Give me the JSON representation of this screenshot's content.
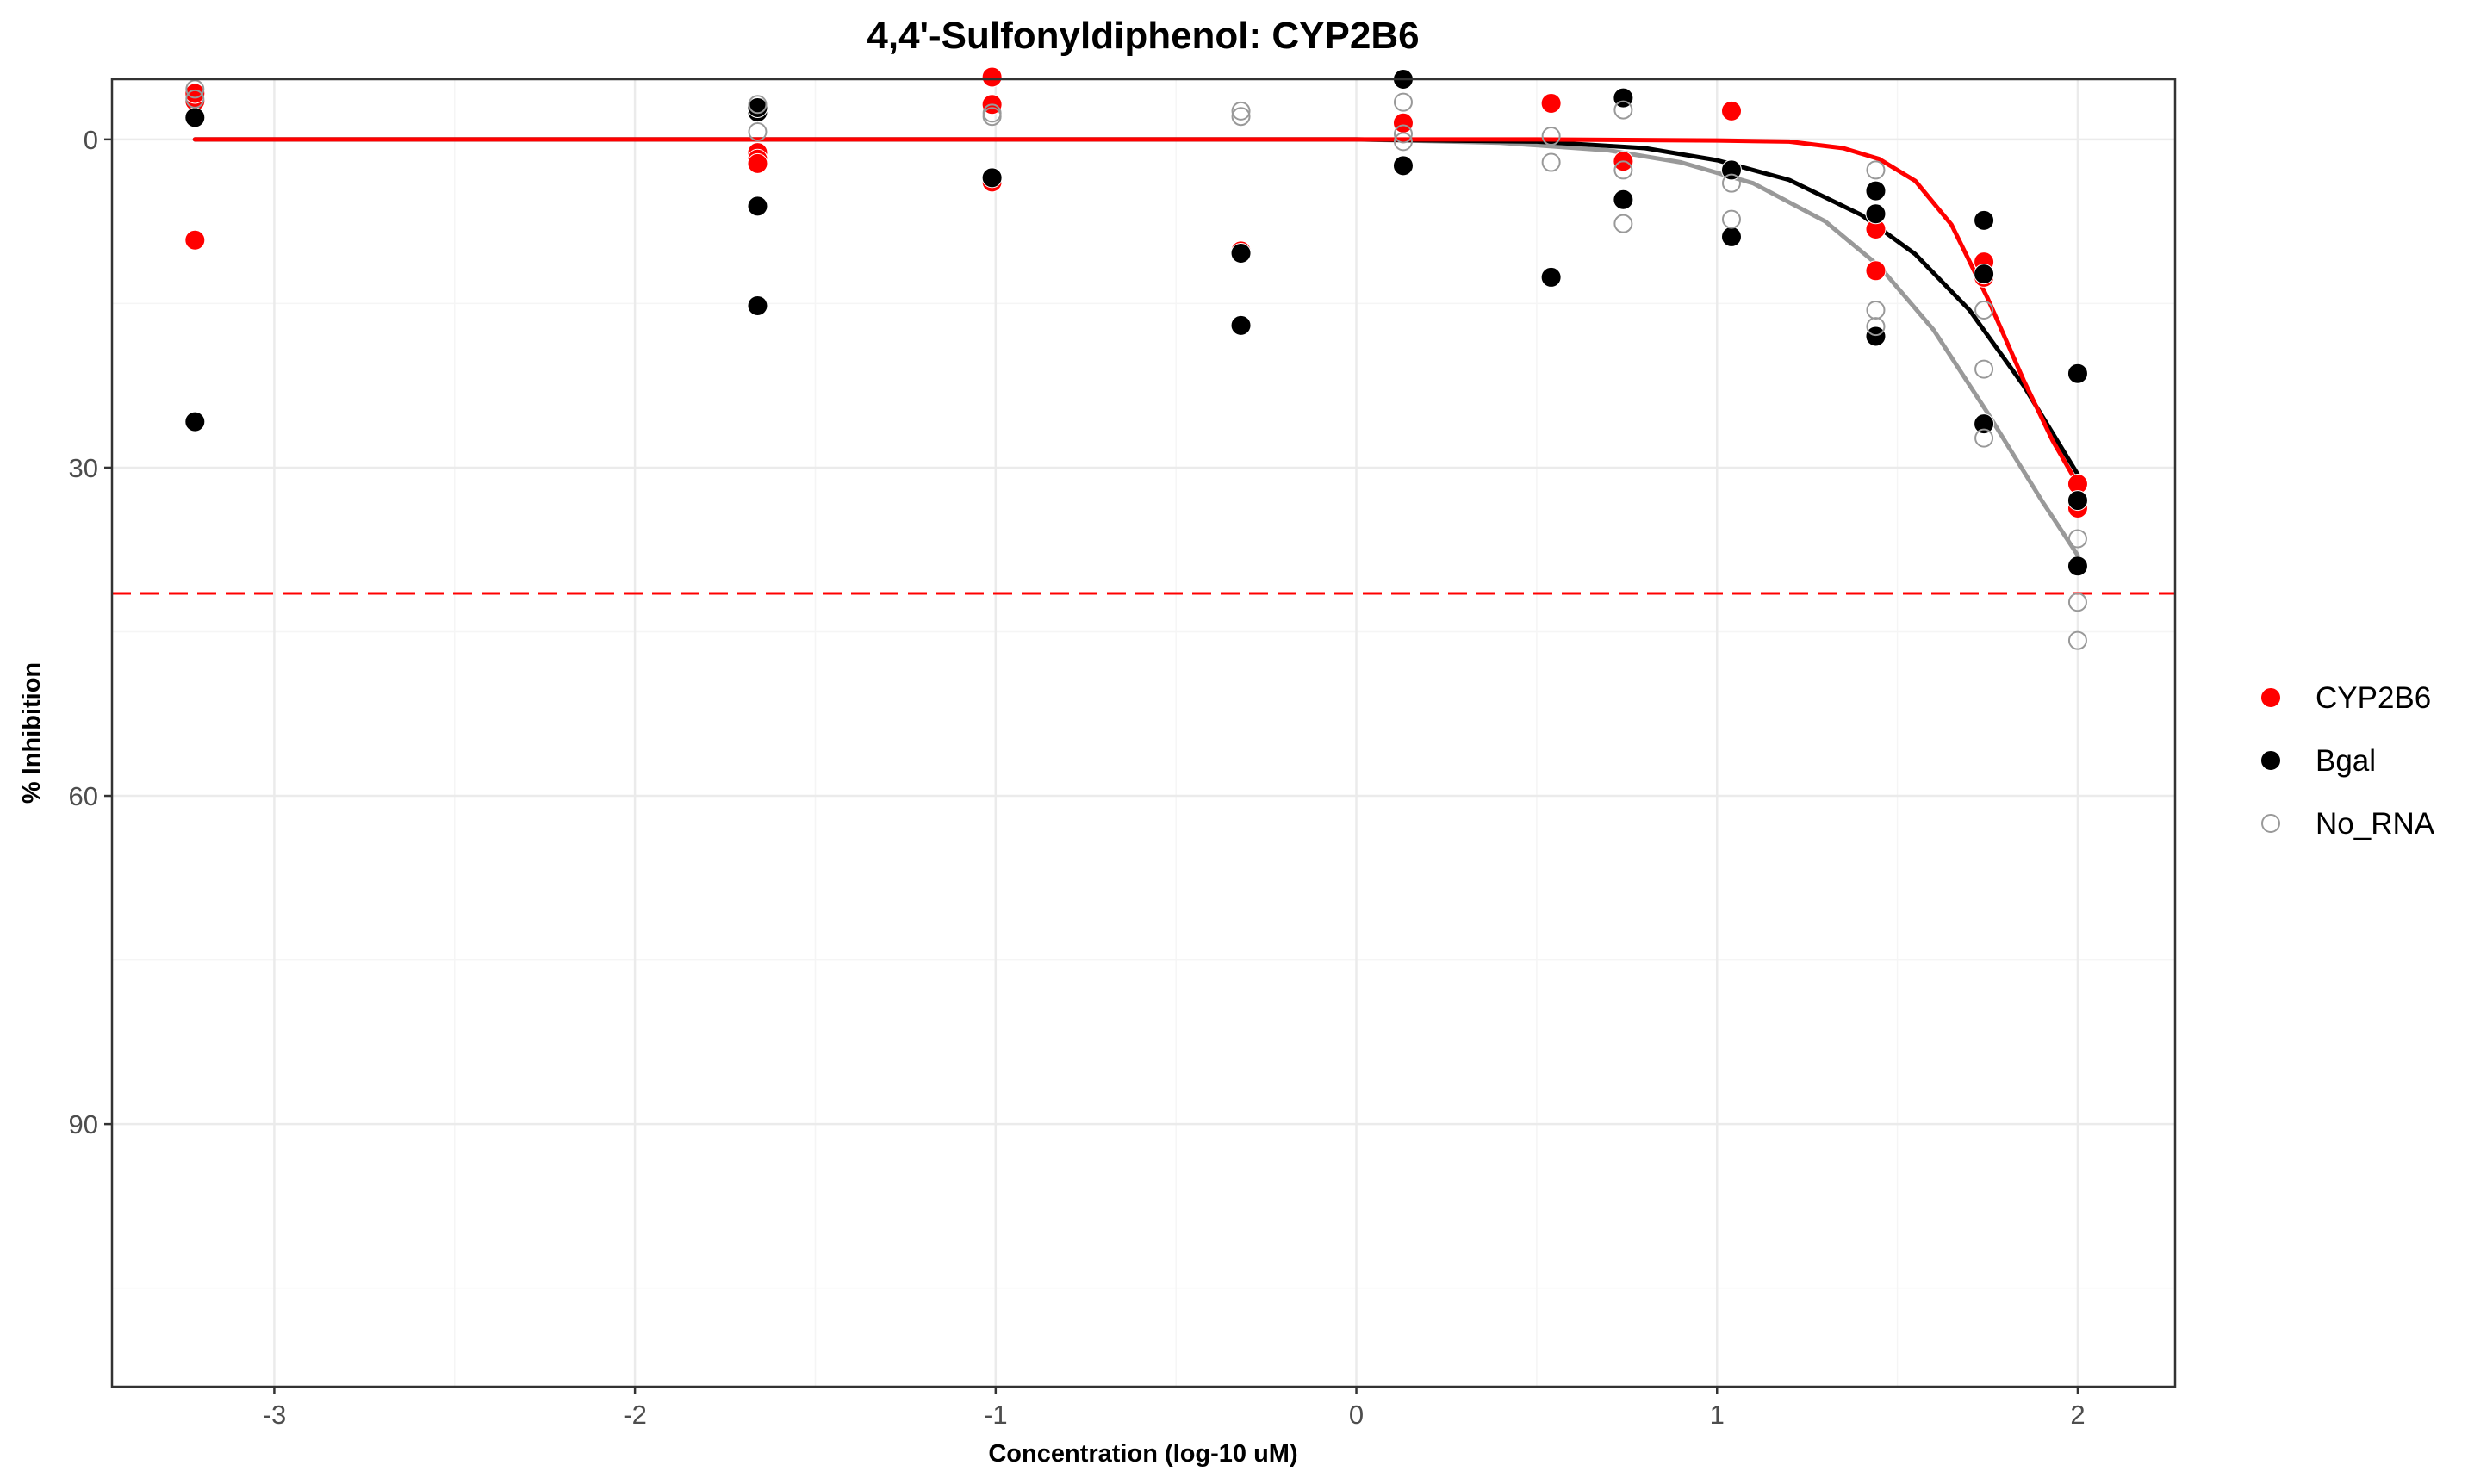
{
  "chart_data": {
    "type": "scatter",
    "title": "4,4'-Sulfonyldiphenol: CYP2B6",
    "xlabel": "Concentration (log-10 uM)",
    "ylabel": "% Inhibition",
    "xlim": [
      -3.45,
      2.27
    ],
    "ylim": [
      -5.5,
      114
    ],
    "y_reversed": true,
    "xticks": [
      -3,
      -2,
      -1,
      0,
      1,
      2
    ],
    "xtick_labels": [
      "-3",
      "-2",
      "-1",
      "0",
      "1",
      "2"
    ],
    "yticks": [
      0,
      30,
      60,
      90
    ],
    "ytick_labels": [
      "0",
      "30",
      "60",
      "90"
    ],
    "grid": true,
    "legend_position": "right",
    "threshold_line": {
      "y": 41.5,
      "style": "dashed",
      "color": "#ff0000"
    },
    "series": [
      {
        "name": "CYP2B6",
        "marker": "filled-circle",
        "color": "#ff0000",
        "points": [
          [
            -3.22,
            -3.5
          ],
          [
            -3.22,
            -4.2
          ],
          [
            -3.22,
            9.2
          ],
          [
            -1.66,
            1.2
          ],
          [
            -1.66,
            1.8
          ],
          [
            -1.66,
            2.2
          ],
          [
            -1.01,
            -5.7
          ],
          [
            -1.01,
            -3.2
          ],
          [
            -1.01,
            3.9
          ],
          [
            -0.32,
            10.2
          ],
          [
            0.13,
            -1.5
          ],
          [
            0.54,
            -3.3
          ],
          [
            0.74,
            2.0
          ],
          [
            1.04,
            -2.6
          ],
          [
            1.44,
            8.2
          ],
          [
            1.44,
            12.0
          ],
          [
            1.74,
            11.2
          ],
          [
            1.74,
            12.6
          ],
          [
            2.0,
            31.5
          ],
          [
            2.0,
            33.7
          ]
        ],
        "curve": [
          [
            -3.22,
            0.0
          ],
          [
            0.5,
            0.0
          ],
          [
            1.0,
            0.1
          ],
          [
            1.2,
            0.2
          ],
          [
            1.35,
            0.8
          ],
          [
            1.45,
            1.8
          ],
          [
            1.55,
            3.8
          ],
          [
            1.65,
            7.8
          ],
          [
            1.75,
            14.5
          ],
          [
            1.85,
            22.0
          ],
          [
            1.93,
            27.5
          ],
          [
            2.0,
            31.5
          ]
        ]
      },
      {
        "name": "Bgal",
        "marker": "filled-circle",
        "color": "#000000",
        "points": [
          [
            -3.22,
            -2.0
          ],
          [
            -3.22,
            25.8
          ],
          [
            -1.66,
            -2.5
          ],
          [
            -1.66,
            -2.9
          ],
          [
            -1.66,
            6.1
          ],
          [
            -1.66,
            15.2
          ],
          [
            -1.01,
            3.5
          ],
          [
            -0.32,
            10.4
          ],
          [
            -0.32,
            17.0
          ],
          [
            0.13,
            -5.5
          ],
          [
            0.13,
            2.4
          ],
          [
            0.54,
            12.6
          ],
          [
            0.74,
            -3.8
          ],
          [
            0.74,
            5.5
          ],
          [
            1.04,
            2.8
          ],
          [
            1.04,
            8.9
          ],
          [
            1.44,
            4.7
          ],
          [
            1.44,
            6.8
          ],
          [
            1.44,
            18.0
          ],
          [
            1.74,
            7.4
          ],
          [
            1.74,
            12.3
          ],
          [
            1.74,
            26.0
          ],
          [
            2.0,
            21.4
          ],
          [
            2.0,
            33.0
          ],
          [
            2.0,
            39.0
          ]
        ],
        "curve": [
          [
            -3.22,
            0.0
          ],
          [
            0.0,
            0.0
          ],
          [
            0.5,
            0.2
          ],
          [
            0.8,
            0.8
          ],
          [
            1.0,
            1.9
          ],
          [
            1.2,
            3.7
          ],
          [
            1.4,
            6.9
          ],
          [
            1.55,
            10.5
          ],
          [
            1.7,
            15.6
          ],
          [
            1.85,
            22.5
          ],
          [
            2.0,
            30.6
          ]
        ]
      },
      {
        "name": "No_RNA",
        "marker": "open-circle",
        "color": "#999999",
        "points": [
          [
            -3.22,
            -4.6
          ],
          [
            -3.22,
            -3.7
          ],
          [
            -1.66,
            -3.2
          ],
          [
            -1.66,
            -0.7
          ],
          [
            -1.01,
            -2.4
          ],
          [
            -1.01,
            -2.1
          ],
          [
            -0.32,
            -2.6
          ],
          [
            -0.32,
            -2.1
          ],
          [
            0.13,
            -3.4
          ],
          [
            0.13,
            -0.5
          ],
          [
            0.13,
            0.2
          ],
          [
            0.54,
            -0.3
          ],
          [
            0.54,
            2.1
          ],
          [
            0.74,
            -2.7
          ],
          [
            0.74,
            2.8
          ],
          [
            0.74,
            7.7
          ],
          [
            1.04,
            4.0
          ],
          [
            1.04,
            7.3
          ],
          [
            1.44,
            2.8
          ],
          [
            1.44,
            15.6
          ],
          [
            1.44,
            17.1
          ],
          [
            1.74,
            15.6
          ],
          [
            1.74,
            21.0
          ],
          [
            1.74,
            27.3
          ],
          [
            2.0,
            36.5
          ],
          [
            2.0,
            42.3
          ],
          [
            2.0,
            45.8
          ]
        ],
        "curve": [
          [
            -3.22,
            0.0
          ],
          [
            0.0,
            0.0
          ],
          [
            0.4,
            0.3
          ],
          [
            0.7,
            1.0
          ],
          [
            0.9,
            2.1
          ],
          [
            1.1,
            4.0
          ],
          [
            1.3,
            7.5
          ],
          [
            1.45,
            11.6
          ],
          [
            1.6,
            17.4
          ],
          [
            1.75,
            25.0
          ],
          [
            1.9,
            33.0
          ],
          [
            2.0,
            38.0
          ]
        ]
      }
    ]
  },
  "colors": {
    "panel_border": "#333333",
    "grid_major": "#ebebeb",
    "grid_minor": "#f5f5f5",
    "tick_text": "#4d4d4d"
  }
}
